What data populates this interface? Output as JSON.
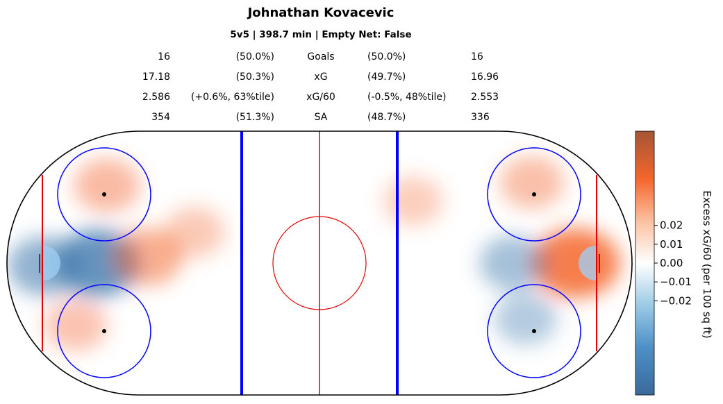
{
  "header": {
    "title": "Johnathan Kovacevic",
    "subtitle": "5v5 | 398.7 min | Empty Net: False"
  },
  "stats": [
    {
      "left_value": "16",
      "left_pct": "(50.0%)",
      "label": "Goals",
      "right_pct": "(50.0%)",
      "right_value": "16"
    },
    {
      "left_value": "17.18",
      "left_pct": "(50.3%)",
      "label": "xG",
      "right_pct": "(49.7%)",
      "right_value": "16.96"
    },
    {
      "left_value": "2.586",
      "left_pct": "(+0.6%, 63%tile)",
      "label": "xG/60",
      "right_pct": "(-0.5%, 48%tile)",
      "right_value": "2.553"
    },
    {
      "left_value": "354",
      "left_pct": "(51.3%)",
      "label": "SA",
      "right_pct": "(48.7%)",
      "right_value": "336"
    }
  ],
  "colors": {
    "rink_outline": "#000000",
    "red_line": "#e00000",
    "blue_line": "#0000ff",
    "faceoff_circle": "#0000ff",
    "crease": "#9fd0f5",
    "positive": "#f4652c",
    "negative": "#3b77ad"
  },
  "chart_data": {
    "type": "heatmap",
    "colorbar": {
      "label": "Excess xG/60 (per 100 sq ft)",
      "ticks": [
        "0.02",
        "0.01",
        "0.00",
        "−0.01",
        "−0.02"
      ],
      "tick_values": [
        0.02,
        0.01,
        0.0,
        -0.01,
        -0.02
      ],
      "range": [
        -0.07,
        0.07
      ]
    },
    "hotspots": [
      {
        "side": "left",
        "zone": "slot-left",
        "x": -71,
        "y": 0,
        "value": -0.05
      },
      {
        "side": "left",
        "zone": "crease",
        "x": -88,
        "y": -1,
        "value": -0.03
      },
      {
        "side": "left",
        "zone": "high-slot",
        "x": -55,
        "y": 2,
        "value": 0.025
      },
      {
        "side": "left",
        "zone": "top-circle",
        "x": -68,
        "y": 25,
        "value": 0.018
      },
      {
        "side": "left",
        "zone": "bottom-low",
        "x": -78,
        "y": -20,
        "value": 0.012
      },
      {
        "side": "left",
        "zone": "point",
        "x": -40,
        "y": 10,
        "value": 0.008
      },
      {
        "side": "right",
        "zone": "crease",
        "x": 82,
        "y": 0,
        "value": 0.055
      },
      {
        "side": "right",
        "zone": "slot-right",
        "x": 62,
        "y": 0,
        "value": -0.02
      },
      {
        "side": "right",
        "zone": "top-circle",
        "x": 68,
        "y": 26,
        "value": 0.015
      },
      {
        "side": "right",
        "zone": "bottom-circle",
        "x": 66,
        "y": -18,
        "value": -0.012
      },
      {
        "side": "right",
        "zone": "neutral-top",
        "x": 30,
        "y": 20,
        "value": 0.006
      }
    ]
  }
}
